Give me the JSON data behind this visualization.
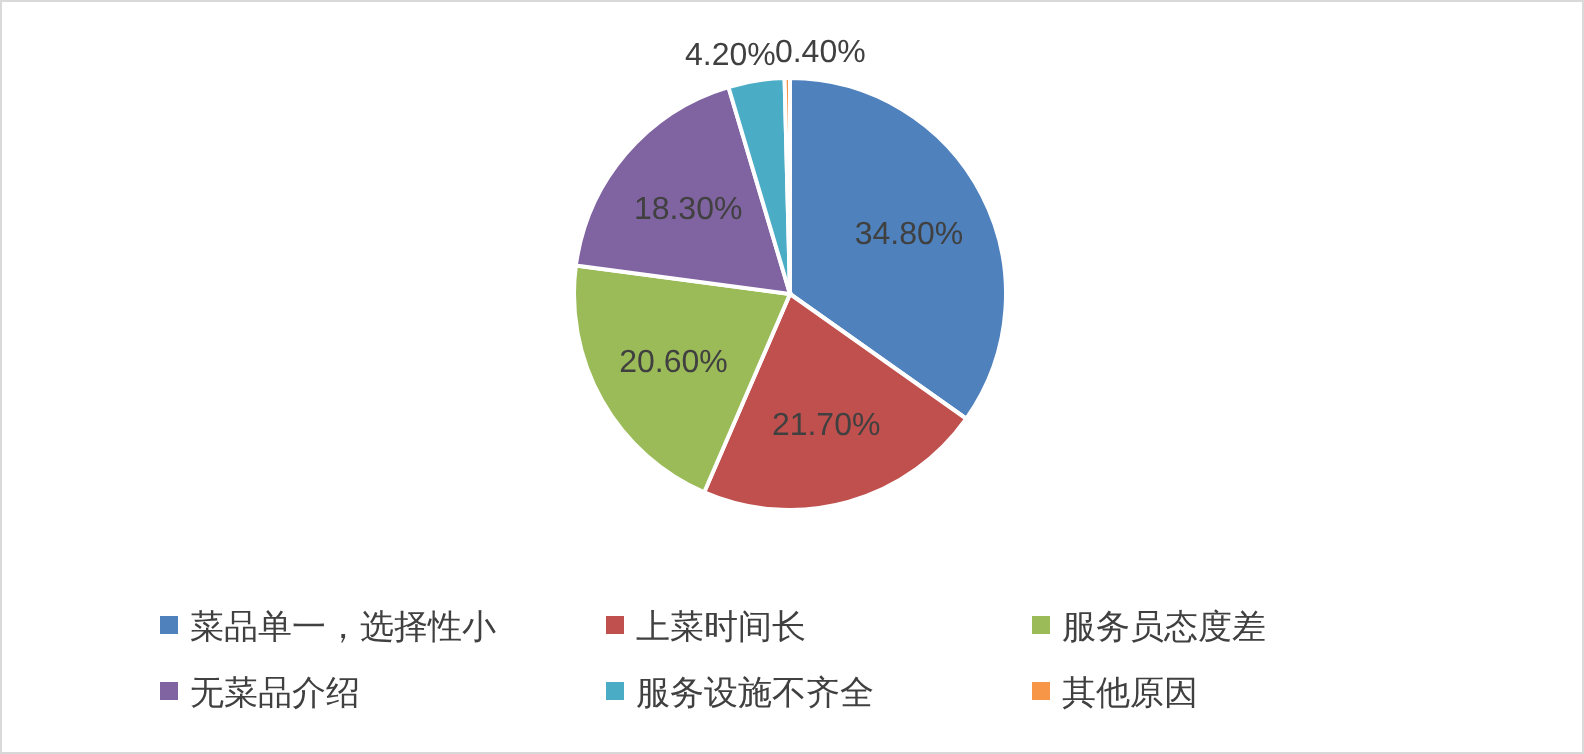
{
  "chart_data": {
    "type": "pie",
    "categories": [
      "菜品单一，选择性小",
      "上菜时间长",
      "服务员态度差",
      "无菜品介绍",
      "服务设施不齐全",
      "其他原因"
    ],
    "values": [
      34.8,
      21.7,
      20.6,
      18.3,
      4.2,
      0.4
    ],
    "colors": [
      "#4f81bd",
      "#c0504d",
      "#9bbb59",
      "#8064a2",
      "#4bacc6",
      "#f79646"
    ],
    "value_labels": [
      "34.80%",
      "21.70%",
      "20.60%",
      "18.30%",
      "4.20%",
      "0.40%"
    ],
    "legend": "bottom"
  }
}
